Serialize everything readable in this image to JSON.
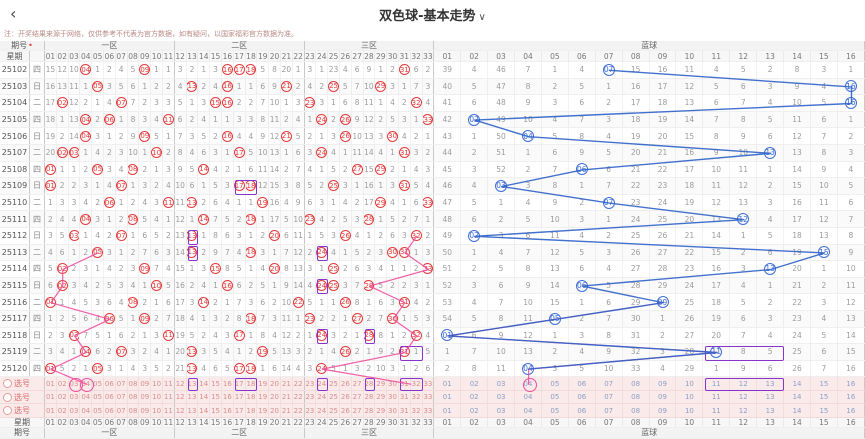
{
  "header": {
    "back_icon": "‹",
    "title": "双色球-基本走势",
    "dropdown_icon": "∨"
  },
  "notice": "注：开奖结果来源于网络，仅供参考不代表为官方数据，如有疑问，以国家福彩官方数据为准。",
  "table": {
    "corner": {
      "issue_label": "期号",
      "issue_mark": "•",
      "week_label": "星期"
    },
    "zones": [
      {
        "label": "一区",
        "type": "red",
        "cols": [
          "01",
          "02",
          "03",
          "04",
          "05",
          "06",
          "07",
          "08",
          "09",
          "10",
          "11"
        ]
      },
      {
        "label": "二区",
        "type": "red",
        "cols": [
          "12",
          "13",
          "14",
          "15",
          "16",
          "17",
          "18",
          "19",
          "20",
          "21",
          "22"
        ]
      },
      {
        "label": "三区",
        "type": "red",
        "cols": [
          "23",
          "24",
          "25",
          "26",
          "27",
          "28",
          "29",
          "30",
          "31",
          "32",
          "33"
        ]
      },
      {
        "label": "蓝球",
        "type": "blue",
        "cols": [
          "01",
          "02",
          "03",
          "04",
          "05",
          "06",
          "07",
          "08",
          "09",
          "10",
          "11",
          "12",
          "13",
          "14",
          "15",
          "16"
        ]
      }
    ],
    "seed_miss_red": [
      15,
      12,
      10,
      0,
      1,
      2,
      4,
      5,
      0,
      1,
      1,
      3,
      2,
      1,
      3,
      0,
      0,
      0,
      5,
      8,
      20,
      1,
      3,
      1,
      23,
      4,
      6,
      9,
      1,
      2,
      0,
      6,
      2
    ],
    "seed_miss_blue": [
      39,
      4,
      46,
      7,
      1,
      4,
      0,
      15,
      16,
      11,
      4,
      5,
      2,
      8,
      3,
      1
    ],
    "rows": [
      {
        "issue": "25102",
        "week": "四",
        "reds": [
          4,
          9,
          16,
          17,
          18,
          31
        ],
        "blue": 7
      },
      {
        "issue": "25103",
        "week": "日",
        "reds": [
          5,
          13,
          16,
          21,
          25,
          29
        ],
        "blue": 16
      },
      {
        "issue": "25104",
        "week": "二",
        "reds": [
          2,
          7,
          15,
          16,
          23,
          32
        ],
        "blue": 16
      },
      {
        "issue": "25105",
        "week": "四",
        "reds": [
          4,
          6,
          11,
          24,
          26,
          33
        ],
        "blue": 2
      },
      {
        "issue": "25106",
        "week": "日",
        "reds": [
          4,
          9,
          16,
          21,
          26,
          30
        ],
        "blue": 4
      },
      {
        "issue": "25107",
        "week": "二",
        "reds": [
          2,
          3,
          10,
          17,
          24,
          31
        ],
        "blue": 13
      },
      {
        "issue": "25108",
        "week": "四",
        "reds": [
          1,
          5,
          8,
          14,
          27,
          29
        ],
        "blue": 6
      },
      {
        "issue": "25109",
        "week": "日",
        "reds": [
          1,
          7,
          17,
          18,
          25,
          31
        ],
        "blue": 3
      },
      {
        "issue": "25110",
        "week": "二",
        "reds": [
          6,
          11,
          13,
          19,
          29,
          33
        ],
        "blue": 7
      },
      {
        "issue": "25111",
        "week": "四",
        "reds": [
          4,
          8,
          14,
          18,
          23,
          28
        ],
        "blue": 12
      },
      {
        "issue": "25112",
        "week": "日",
        "reds": [
          3,
          7,
          13,
          20,
          26,
          32
        ],
        "blue": 2
      },
      {
        "issue": "25113",
        "week": "二",
        "reds": [
          5,
          13,
          18,
          24,
          30,
          31
        ],
        "blue": 15
      },
      {
        "issue": "25114",
        "week": "四",
        "reds": [
          2,
          9,
          15,
          20,
          25,
          33
        ],
        "blue": 13
      },
      {
        "issue": "25115",
        "week": "日",
        "reds": [
          2,
          10,
          16,
          24,
          25,
          28
        ],
        "blue": 6
      },
      {
        "issue": "25116",
        "week": "二",
        "reds": [
          1,
          8,
          14,
          22,
          26,
          31
        ],
        "blue": 9
      },
      {
        "issue": "25117",
        "week": "四",
        "reds": [
          6,
          9,
          18,
          23,
          27,
          30
        ],
        "blue": 5
      },
      {
        "issue": "25118",
        "week": "日",
        "reds": [
          3,
          11,
          17,
          24,
          28,
          32
        ],
        "blue": 1
      },
      {
        "issue": "25119",
        "week": "二",
        "reds": [
          4,
          7,
          13,
          19,
          26,
          31
        ],
        "blue": 11
      },
      {
        "issue": "25120",
        "week": "四",
        "reds": [
          1,
          5,
          13,
          17,
          18,
          24
        ],
        "blue": 4
      }
    ],
    "select_rows": [
      {
        "label": "选号"
      },
      {
        "label": "选号"
      },
      {
        "label": "选号"
      }
    ]
  },
  "selections": {
    "boxes": [
      {
        "row": "25109",
        "zone": "r",
        "from": 17,
        "to": 18
      },
      {
        "row": "25112",
        "zone": "r",
        "from": 13,
        "to": 13
      },
      {
        "row": "25113",
        "zone": "r",
        "from": 13,
        "to": 13
      },
      {
        "row": "25113",
        "zone": "r",
        "from": 24,
        "to": 24
      },
      {
        "row": "25115",
        "zone": "r",
        "from": 24,
        "to": 24
      },
      {
        "row": "25118",
        "zone": "r",
        "from": 24,
        "to": 24
      },
      {
        "row": "25118",
        "zone": "r",
        "from": 28,
        "to": 28
      },
      {
        "row": "25119",
        "zone": "r",
        "from": 31,
        "to": 32
      },
      {
        "row": "25119",
        "zone": "b",
        "from": 11,
        "to": 13
      },
      {
        "row": "sel1",
        "zone": "r",
        "from": 13,
        "to": 13
      },
      {
        "row": "sel1",
        "zone": "r",
        "from": 17,
        "to": 18
      },
      {
        "row": "sel1",
        "zone": "r",
        "from": 24,
        "to": 24
      },
      {
        "row": "sel1",
        "zone": "r",
        "from": 28,
        "to": 28
      },
      {
        "row": "sel1",
        "zone": "r",
        "from": 31,
        "to": 32
      },
      {
        "row": "sel1",
        "zone": "b",
        "from": 11,
        "to": 13
      }
    ],
    "rings": [
      {
        "row": "sel1",
        "zone": "r",
        "col": 3
      },
      {
        "row": "sel1",
        "zone": "r",
        "col": 4
      },
      {
        "row": "sel1",
        "zone": "b",
        "col": 4
      }
    ]
  },
  "lines": {
    "blue_color": "#2e62c8",
    "pink_color": "#ee4f9e",
    "blue_series": {
      "mode": "drawn_blue",
      "from_issue": "25102"
    },
    "pink_series": [
      {
        "mode": "min_red",
        "from_issue": "25113",
        "end": {
          "zone": "r",
          "col": 4
        }
      },
      {
        "mode": "max_red",
        "from_issue": "25112",
        "end": {
          "zone": "r",
          "col": 31.5
        }
      },
      {
        "mode": "drawn_blue",
        "from_issue": "25116",
        "end": {
          "zone": "b",
          "col": 4
        }
      }
    ]
  },
  "colors": {
    "red_ball": "#e23b3c",
    "blue_ball": "#3f6fd8",
    "miss_text": "#9c9c9c",
    "purple_box": "#8833cc",
    "pink_line": "#ee4f9e",
    "blue_line": "#2e62c8",
    "select_row_bg": "#fbeaea"
  }
}
